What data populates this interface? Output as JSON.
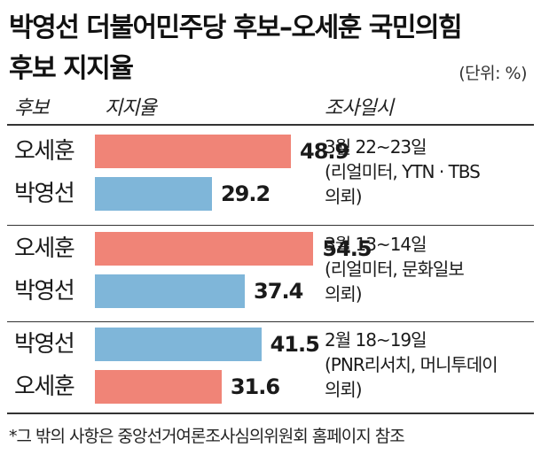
{
  "title": {
    "line1": "박영선 더불어민주당 후보–오세훈 국민의힘",
    "line2": "후보 지지율"
  },
  "unit": "(단위: %)",
  "headers": {
    "candidate": "후보",
    "support": "지지율",
    "survey": "조사일시"
  },
  "colors": {
    "oh": "#f08477",
    "park": "#7fb6d9"
  },
  "chart_data": {
    "type": "bar",
    "orientation": "horizontal",
    "xlim": [
      0,
      80
    ],
    "groups": [
      {
        "survey": [
          "3월 22~23일",
          "(리얼미터, YTN · TBS",
          "의뢰)"
        ],
        "bars": [
          {
            "name": "오세훈",
            "value": 48.9,
            "color": "oh"
          },
          {
            "name": "박영선",
            "value": 29.2,
            "color": "park"
          }
        ]
      },
      {
        "survey": [
          "3월 13~14일",
          "(리얼미터, 문화일보",
          "의뢰)"
        ],
        "bars": [
          {
            "name": "오세훈",
            "value": 54.5,
            "color": "oh"
          },
          {
            "name": "박영선",
            "value": 37.4,
            "color": "park"
          }
        ]
      },
      {
        "survey": [
          "2월 18~19일",
          "(PNR리서치, 머니투데이",
          "의뢰)"
        ],
        "bars": [
          {
            "name": "박영선",
            "value": 41.5,
            "color": "park"
          },
          {
            "name": "오세훈",
            "value": 31.6,
            "color": "oh"
          }
        ]
      }
    ]
  },
  "footnote": "*그 밖의 사항은 중앙선거여론조사심의위원회 홈페이지 참조"
}
